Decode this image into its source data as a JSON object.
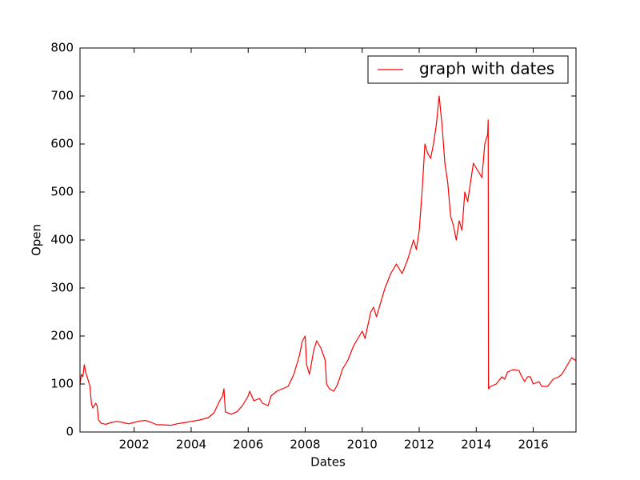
{
  "chart_data": {
    "type": "line",
    "xlabel": "Dates",
    "ylabel": "Open",
    "xlim": [
      2000.1,
      2017.5
    ],
    "xticks": [
      2002,
      2004,
      2006,
      2008,
      2010,
      2012,
      2014,
      2016
    ],
    "ylim": [
      0,
      800
    ],
    "yticks": [
      0,
      100,
      200,
      300,
      400,
      500,
      600,
      700,
      800
    ],
    "legend": "upper right",
    "x": [
      2000.1,
      2000.15,
      2000.2,
      2000.25,
      2000.3,
      2000.35,
      2000.45,
      2000.5,
      2000.55,
      2000.65,
      2000.7,
      2000.75,
      2000.85,
      2001.0,
      2001.2,
      2001.4,
      2001.6,
      2001.8,
      2002.0,
      2002.2,
      2002.4,
      2002.6,
      2002.8,
      2003.0,
      2003.3,
      2003.5,
      2003.8,
      2004.0,
      2004.3,
      2004.6,
      2004.8,
      2005.0,
      2005.1,
      2005.15,
      2005.2,
      2005.4,
      2005.6,
      2005.8,
      2006.0,
      2006.05,
      2006.2,
      2006.4,
      2006.5,
      2006.7,
      2006.8,
      2007.0,
      2007.2,
      2007.4,
      2007.6,
      2007.8,
      2007.9,
      2008.0,
      2008.05,
      2008.15,
      2008.3,
      2008.4,
      2008.55,
      2008.7,
      2008.75,
      2008.85,
      2009.0,
      2009.1,
      2009.2,
      2009.3,
      2009.5,
      2009.7,
      2009.9,
      2010.0,
      2010.1,
      2010.3,
      2010.4,
      2010.5,
      2010.6,
      2010.8,
      2011.0,
      2011.2,
      2011.4,
      2011.6,
      2011.7,
      2011.8,
      2011.9,
      2012.0,
      2012.1,
      2012.2,
      2012.3,
      2012.4,
      2012.5,
      2012.6,
      2012.7,
      2012.8,
      2012.9,
      2013.0,
      2013.1,
      2013.2,
      2013.3,
      2013.4,
      2013.5,
      2013.6,
      2013.7,
      2013.8,
      2013.9,
      2014.0,
      2014.1,
      2014.2,
      2014.3,
      2014.4,
      2014.42,
      2014.43,
      2014.5,
      2014.7,
      2014.9,
      2015.0,
      2015.1,
      2015.3,
      2015.5,
      2015.6,
      2015.7,
      2015.8,
      2015.9,
      2016.0,
      2016.2,
      2016.3,
      2016.5,
      2016.7,
      2016.9,
      2017.0,
      2017.2,
      2017.35,
      2017.45,
      2017.5
    ],
    "series": [
      {
        "name": "graph with dates",
        "color": "#ff0000",
        "values": [
          100,
          120,
          115,
          140,
          125,
          115,
          95,
          60,
          50,
          60,
          55,
          25,
          18,
          16,
          20,
          22,
          20,
          17,
          20,
          23,
          24,
          20,
          15,
          15,
          14,
          17,
          20,
          22,
          25,
          30,
          40,
          65,
          75,
          90,
          42,
          37,
          42,
          55,
          75,
          85,
          65,
          70,
          60,
          55,
          75,
          85,
          90,
          95,
          120,
          160,
          190,
          200,
          140,
          120,
          170,
          190,
          175,
          150,
          100,
          90,
          85,
          95,
          110,
          130,
          150,
          180,
          200,
          210,
          195,
          250,
          260,
          240,
          260,
          300,
          330,
          350,
          330,
          360,
          380,
          400,
          380,
          420,
          500,
          600,
          580,
          570,
          600,
          640,
          700,
          640,
          560,
          520,
          450,
          430,
          400,
          440,
          420,
          500,
          480,
          520,
          560,
          550,
          540,
          530,
          600,
          620,
          650,
          90,
          95,
          100,
          115,
          110,
          125,
          130,
          128,
          115,
          105,
          115,
          115,
          100,
          105,
          95,
          95,
          110,
          115,
          120,
          140,
          155,
          150,
          150
        ]
      }
    ]
  }
}
